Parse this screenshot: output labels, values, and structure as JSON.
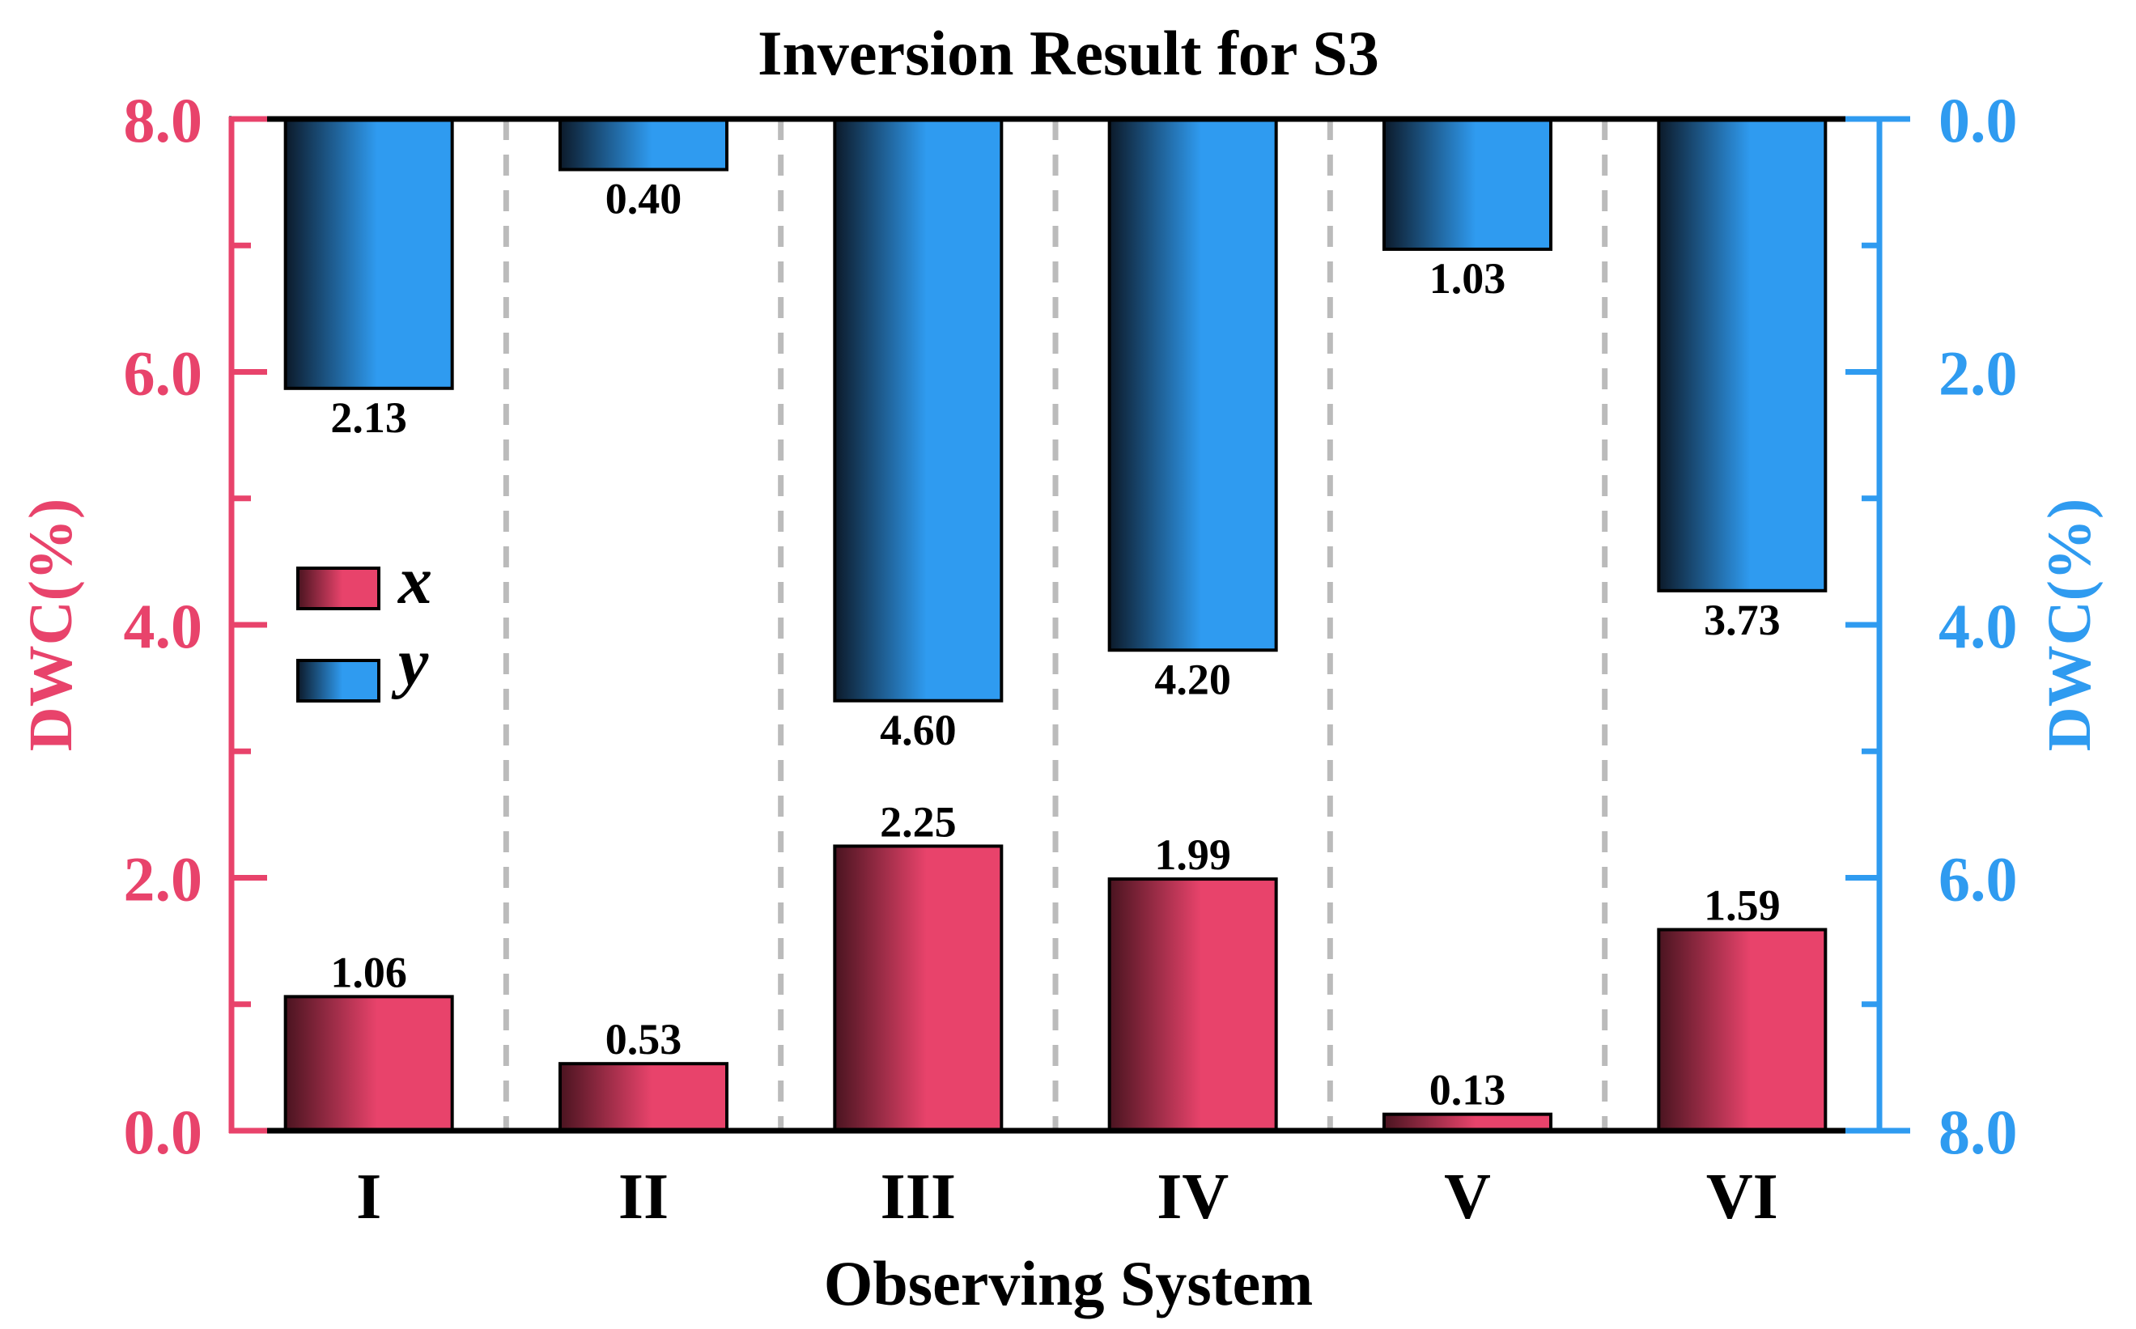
{
  "chart_data": {
    "type": "bar",
    "title": "Inversion Result for S3",
    "xlabel": "Observing System",
    "ylabel_left": "DWC(%)",
    "ylabel_right": "DWC(%)",
    "categories": [
      "I",
      "II",
      "III",
      "IV",
      "V",
      "VI"
    ],
    "ylim_left": [
      0,
      8
    ],
    "ylim_right": [
      8,
      0
    ],
    "right_axis_inverted": true,
    "yticks_left": [
      "0.0",
      "2.0",
      "4.0",
      "6.0",
      "8.0"
    ],
    "yticks_right": [
      "0.0",
      "2.0",
      "4.0",
      "6.0",
      "8.0"
    ],
    "grid": "vertical dashed separators between categories",
    "legend_position": "left-middle",
    "series": [
      {
        "name": "x",
        "axis": "left",
        "color": "#e8436b",
        "values": [
          1.06,
          0.53,
          2.25,
          1.99,
          0.13,
          1.59
        ],
        "labels": [
          "1.06",
          "0.53",
          "2.25",
          "1.99",
          "0.13",
          "1.59"
        ]
      },
      {
        "name": "y",
        "axis": "right",
        "color": "#2f9bf0",
        "values": [
          2.13,
          0.4,
          4.6,
          4.2,
          1.03,
          3.73
        ],
        "labels": [
          "2.13",
          "0.40",
          "4.60",
          "4.20",
          "1.03",
          "3.73"
        ]
      }
    ],
    "colors": {
      "left_axis": "#e8436b",
      "right_axis": "#2f9bf0",
      "separator": "#bbbbbb",
      "frame": "#000000"
    }
  }
}
